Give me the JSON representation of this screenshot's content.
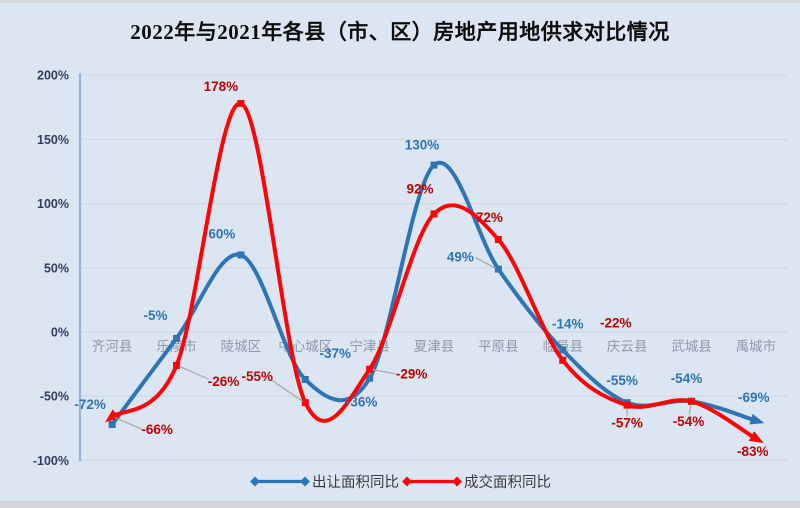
{
  "title": "2022年与2021年各县（市、区）房地产用地供求对比情况",
  "chart_data": {
    "type": "line",
    "smooth": true,
    "grid": true,
    "legend_position": "bottom",
    "categories": [
      "齐河县",
      "乐陵市",
      "陵城区",
      "中心城区",
      "宁津县",
      "夏津县",
      "平原县",
      "临邑县",
      "庆云县",
      "武城县",
      "禹城市"
    ],
    "series": [
      {
        "name": "出让面积同比",
        "color": "#2e75b6",
        "label_color": "#2e74b5",
        "values": [
          -72,
          -5,
          60,
          -37,
          -36,
          130,
          49,
          -14,
          -55,
          -54,
          -69
        ],
        "labels": [
          "-72%",
          "-5%",
          "60%",
          "-37%",
          "-36%",
          "130%",
          "49%",
          "-14%",
          "-55%",
          "-54%",
          "-69%"
        ],
        "label_offsets": [
          [
            -22,
            -20,
            0
          ],
          [
            -21,
            -23,
            0
          ],
          [
            -19,
            -21,
            0
          ],
          [
            30,
            -26,
            0
          ],
          [
            -8,
            24,
            0
          ],
          [
            -12,
            -20,
            0
          ],
          [
            -38,
            -12,
            1
          ],
          [
            5,
            -26,
            0
          ],
          [
            -5,
            -22,
            0
          ],
          [
            -5,
            -23,
            0
          ],
          [
            -2,
            -23,
            0
          ]
        ]
      },
      {
        "name": "成交面积同比",
        "color": "#fe0404",
        "label_color": "#c00000",
        "values": [
          -66,
          -26,
          178,
          -55,
          -29,
          92,
          72,
          -22,
          -57,
          -54,
          -83
        ],
        "labels": [
          "-66%",
          "-26%",
          "178%",
          "-55%",
          "-29%",
          "92%",
          "72%",
          "-22%",
          "-57%",
          "-54%",
          "-83%"
        ],
        "label_offsets": [
          [
            45,
            13,
            1
          ],
          [
            47,
            16,
            1
          ],
          [
            -20,
            -17,
            0
          ],
          [
            -48,
            -26,
            1
          ],
          [
            42,
            5,
            1
          ],
          [
            -14,
            -25,
            0
          ],
          [
            -9,
            -22,
            0
          ],
          [
            53,
            -37,
            0
          ],
          [
            0,
            18,
            1
          ],
          [
            -3,
            20,
            1
          ],
          [
            -3,
            13,
            0
          ]
        ]
      }
    ],
    "y_axis": {
      "min": -100,
      "max": 200,
      "step": 50,
      "tick_labels": [
        "200%",
        "150%",
        "100%",
        "50%",
        "0%",
        "-50%",
        "-100%"
      ]
    },
    "xlabel": "",
    "ylabel": ""
  },
  "colors": {
    "background": "#dce6f2",
    "gridline": "#cdd7e4",
    "axis_line": "#93b7dd",
    "tick_label": "#2f3f5f",
    "category_label": "#8f9aa9",
    "leader_line": "#a6a6a6"
  }
}
